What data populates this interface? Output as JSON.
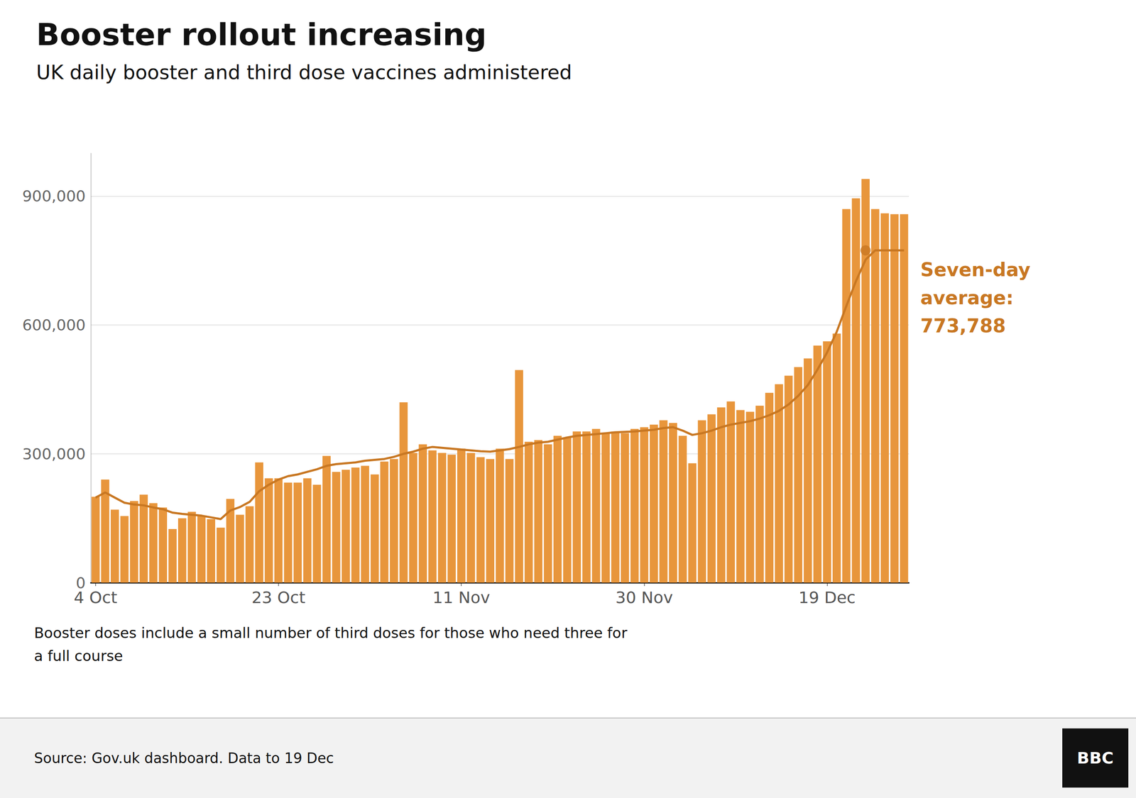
{
  "chart_data": {
    "type": "bar",
    "title": "Booster rollout increasing",
    "subtitle": "UK daily booster and third dose vaccines administered",
    "background_color": "#ffffff",
    "categories": [
      "4 Oct",
      null,
      null,
      null,
      null,
      null,
      null,
      null,
      null,
      null,
      null,
      null,
      null,
      null,
      null,
      null,
      null,
      null,
      null,
      "23 Oct",
      null,
      null,
      null,
      null,
      null,
      null,
      null,
      null,
      null,
      null,
      null,
      null,
      null,
      null,
      null,
      null,
      null,
      null,
      "11 Nov",
      null,
      null,
      null,
      null,
      null,
      null,
      null,
      null,
      null,
      null,
      null,
      null,
      null,
      null,
      null,
      null,
      null,
      null,
      "30 Nov",
      null,
      null,
      null,
      null,
      null,
      null,
      null,
      null,
      null,
      null,
      null,
      null,
      null,
      null,
      null,
      null,
      null,
      null,
      "19 Dec",
      null,
      null,
      null,
      null,
      null,
      null,
      null,
      null
    ],
    "series": [
      {
        "type": "bar",
        "color": "#E8963C",
        "values": [
          200000,
          240000,
          170000,
          155000,
          190000,
          205000,
          185000,
          175000,
          125000,
          150000,
          165000,
          155000,
          148000,
          128000,
          195000,
          158000,
          178000,
          280000,
          243000,
          243000,
          233000,
          233000,
          243000,
          228000,
          295000,
          258000,
          263000,
          268000,
          272000,
          252000,
          282000,
          288000,
          420000,
          302000,
          322000,
          308000,
          302000,
          298000,
          312000,
          302000,
          292000,
          288000,
          312000,
          288000,
          495000,
          328000,
          332000,
          322000,
          342000,
          338000,
          352000,
          352000,
          358000,
          348000,
          352000,
          348000,
          358000,
          362000,
          368000,
          378000,
          372000,
          342000,
          278000,
          378000,
          392000,
          408000,
          422000,
          402000,
          398000,
          412000,
          442000,
          462000,
          482000,
          502000,
          522000,
          552000,
          562000,
          580000,
          870000,
          895000,
          940000,
          870000,
          860000,
          858000,
          858000
        ]
      },
      {
        "type": "line",
        "color": "#C87722",
        "values": [
          198000,
          210000,
          198000,
          186000,
          182000,
          180000,
          175000,
          171000,
          163000,
          160000,
          158000,
          156000,
          152000,
          148000,
          168000,
          176000,
          188000,
          213000,
          228000,
          240000,
          248000,
          252000,
          258000,
          264000,
          272000,
          276000,
          278000,
          280000,
          284000,
          286000,
          288000,
          293000,
          300000,
          305000,
          312000,
          316000,
          314000,
          312000,
          310000,
          308000,
          306000,
          305000,
          308000,
          311000,
          316000,
          322000,
          326000,
          328000,
          333000,
          338000,
          342000,
          344000,
          346000,
          348000,
          350000,
          351000,
          352000,
          354000,
          356000,
          360000,
          362000,
          354000,
          344000,
          348000,
          354000,
          362000,
          368000,
          372000,
          376000,
          382000,
          390000,
          400000,
          415000,
          435000,
          460000,
          496000,
          536000,
          584000,
          644000,
          702000,
          752000,
          773788,
          773788,
          773788,
          773788
        ]
      },
      {
        "type": "scatter",
        "color": "#C87722",
        "values": [
          null,
          null,
          null,
          null,
          null,
          null,
          null,
          null,
          null,
          null,
          null,
          null,
          null,
          null,
          null,
          null,
          null,
          null,
          null,
          null,
          null,
          null,
          null,
          null,
          null,
          null,
          null,
          null,
          null,
          null,
          null,
          null,
          null,
          null,
          null,
          null,
          null,
          null,
          null,
          null,
          null,
          null,
          null,
          null,
          null,
          null,
          null,
          null,
          null,
          null,
          null,
          null,
          null,
          null,
          null,
          null,
          null,
          null,
          null,
          null,
          null,
          null,
          null,
          null,
          null,
          null,
          null,
          null,
          null,
          null,
          null,
          null,
          null,
          null,
          null,
          null,
          null,
          null,
          null,
          null,
          773788,
          null,
          null,
          null,
          null
        ]
      }
    ],
    "ylim": [
      0,
      1000000
    ],
    "yticks": [
      0,
      {
        "value": 300000,
        "label": "300,000"
      },
      {
        "value": 600000,
        "label": "600,000"
      },
      {
        "value": 900000,
        "label": "900,000"
      }
    ],
    "grid": true,
    "annotations": [
      {
        "text": "Seven-day\naverage:\n773,788",
        "color": "#C87722"
      },
      {
        "text": "Booster doses include a small number of third doses for those who need three for\na full course"
      },
      {
        "text": "Source: Gov.uk dashboard. Data to 19 Dec"
      },
      {
        "text": "BBC"
      }
    ]
  }
}
